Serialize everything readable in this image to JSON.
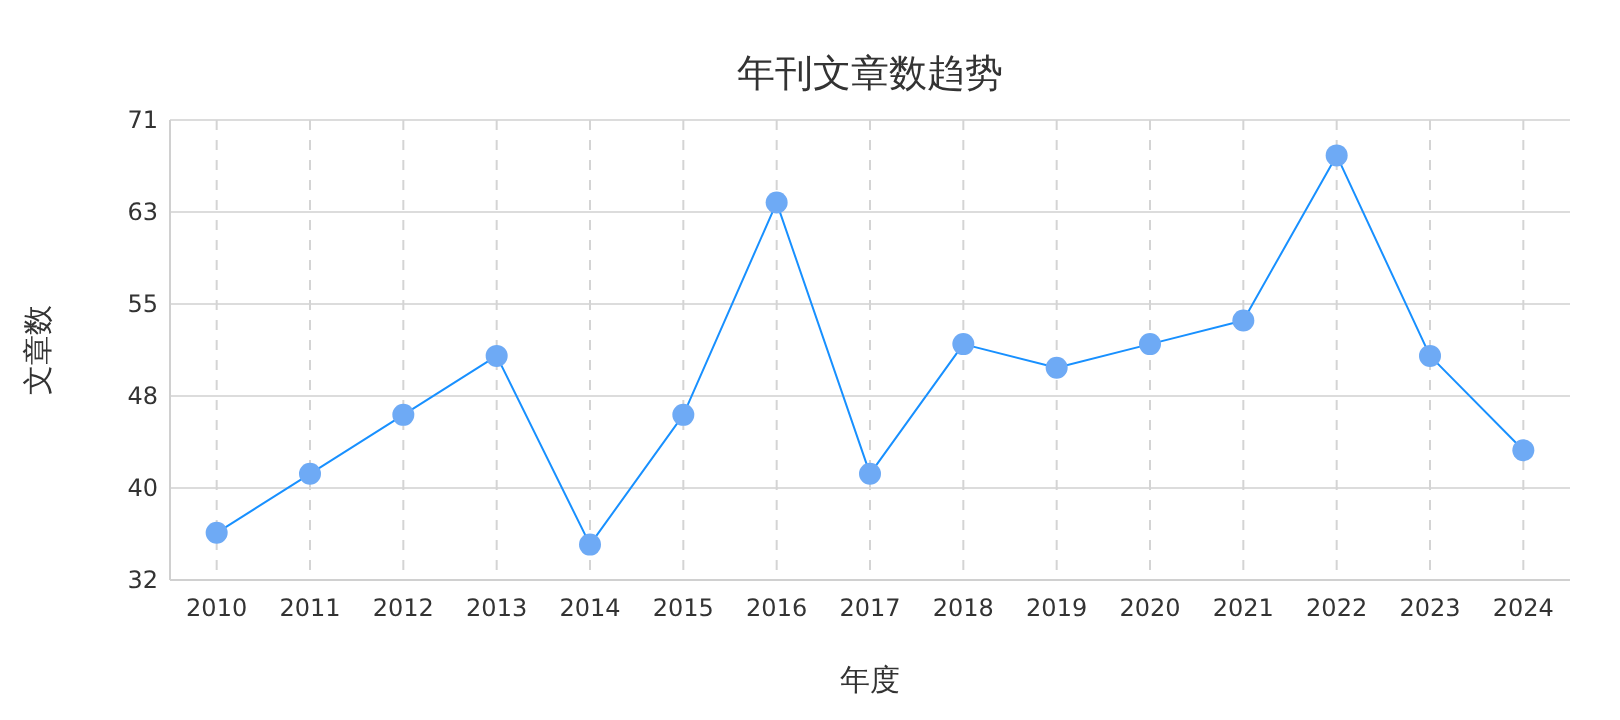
{
  "chart_data": {
    "type": "line",
    "title": "年刊文章数趋势",
    "xlabel": "年度",
    "ylabel": "文章数",
    "categories": [
      "2010",
      "2011",
      "2012",
      "2013",
      "2014",
      "2015",
      "2016",
      "2017",
      "2018",
      "2019",
      "2020",
      "2021",
      "2022",
      "2023",
      "2024"
    ],
    "series": [
      {
        "color": "#1890ff",
        "values": [
          36,
          41,
          46,
          51,
          35,
          46,
          64,
          41,
          52,
          50,
          52,
          54,
          68,
          51,
          43
        ]
      }
    ],
    "ylim": [
      32,
      71
    ],
    "yticks": [
      32,
      {
        "value": 39.8,
        "label": "40"
      },
      {
        "value": 47.6,
        "label": "48"
      },
      {
        "value": 55.4,
        "label": "55"
      },
      {
        "value": 63.2,
        "label": "63"
      },
      71
    ],
    "grid": true,
    "marker": "circle",
    "line_style": "solid"
  }
}
